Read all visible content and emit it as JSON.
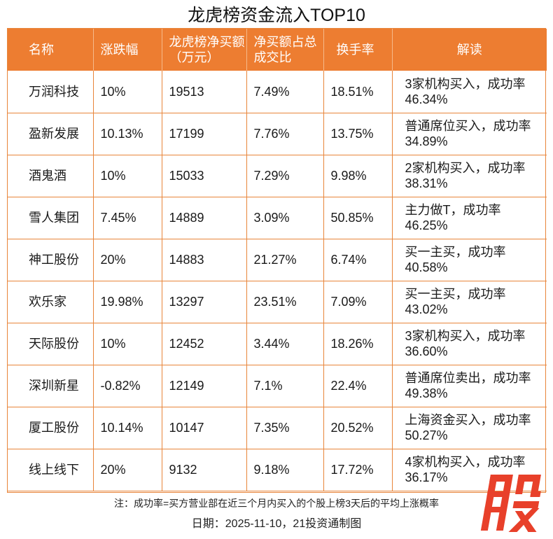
{
  "title": "龙虎榜资金流入TOP10",
  "header": {
    "name": "名称",
    "change": "涨跌幅",
    "net_buy": "龙虎榜净买额（万元）",
    "net_buy_ratio": "净买额占总成交比",
    "turnover": "换手率",
    "note": "解读"
  },
  "rows": [
    {
      "name": "万润科技",
      "change": "10%",
      "net_buy": "19513",
      "ratio": "7.49%",
      "turnover": "18.51%",
      "note": "3家机构买入，成功率46.34%"
    },
    {
      "name": "盈新发展",
      "change": "10.13%",
      "net_buy": "17199",
      "ratio": "7.76%",
      "turnover": "13.75%",
      "note": "普通席位买入，成功率34.89%"
    },
    {
      "name": "酒鬼酒",
      "change": "10%",
      "net_buy": "15033",
      "ratio": "7.29%",
      "turnover": "9.98%",
      "note": "2家机构买入，成功率38.31%"
    },
    {
      "name": "雪人集团",
      "change": "7.45%",
      "net_buy": "14889",
      "ratio": "3.09%",
      "turnover": "50.85%",
      "note": "主力做T，成功率46.25%"
    },
    {
      "name": "神工股份",
      "change": "20%",
      "net_buy": "14883",
      "ratio": "21.27%",
      "turnover": "6.74%",
      "note": "买一主买，成功率40.58%"
    },
    {
      "name": "欢乐家",
      "change": "19.98%",
      "net_buy": "13297",
      "ratio": "23.51%",
      "turnover": "7.09%",
      "note": "买一主买，成功率43.02%"
    },
    {
      "name": "天际股份",
      "change": "10%",
      "net_buy": "12452",
      "ratio": "3.44%",
      "turnover": "18.26%",
      "note": "3家机构买入，成功率36.60%"
    },
    {
      "name": "深圳新星",
      "change": "-0.82%",
      "net_buy": "12149",
      "ratio": "7.1%",
      "turnover": "22.4%",
      "note": "普通席位卖出，成功率49.38%"
    },
    {
      "name": "厦工股份",
      "change": "10.14%",
      "net_buy": "10147",
      "ratio": "7.35%",
      "turnover": "20.52%",
      "note": "上海资金买入，成功率50.27%"
    },
    {
      "name": "线上线下",
      "change": "20%",
      "net_buy": "9132",
      "ratio": "9.18%",
      "turnover": "17.72%",
      "note": "4家机构买入，成功率36.17%"
    }
  ],
  "footer": {
    "note": "注：成功率=买方营业部在近三个月内买入的个股上榜3天后的平均上涨概率",
    "date": "日期：2025-11-10，21投资通制图"
  },
  "stamp": {
    "char": "股",
    "color": "#e8402a"
  },
  "colors": {
    "header_bg": "#ed7d31",
    "border": "#e8853a"
  }
}
